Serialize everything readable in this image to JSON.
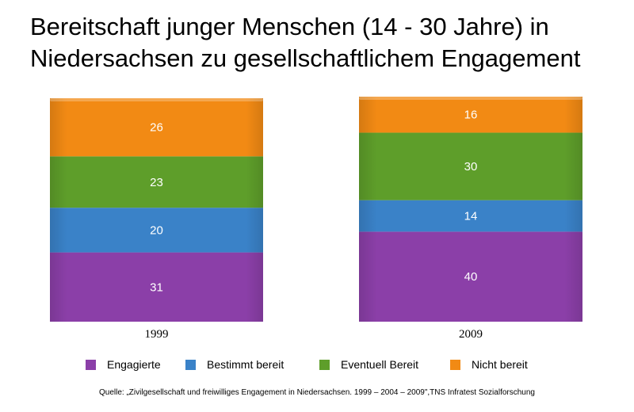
{
  "title_lines": [
    "Bereitschaft junger Menschen (14 - 30 Jahre) in",
    "Niedersachsen zu gesellschaftlichem Engagement"
  ],
  "chart_data": {
    "type": "bar",
    "stacked": true,
    "percent_stacked": true,
    "title": "Bereitschaft junger Menschen (14 - 30 Jahre) in Niedersachsen zu gesellschaftlichem Engagement",
    "categories": [
      "1999",
      "2009"
    ],
    "series": [
      {
        "name": "Engagierte",
        "color": "#8b3fa8",
        "values": [
          31,
          40
        ]
      },
      {
        "name": "Bestimmt bereit",
        "color": "#3a82c8",
        "values": [
          20,
          14
        ]
      },
      {
        "name": "Eventuell Bereit",
        "color": "#5e9e2a",
        "values": [
          23,
          30
        ]
      },
      {
        "name": "Nicht bereit",
        "color": "#f28a14",
        "values": [
          26,
          16
        ]
      }
    ],
    "legend_position": "bottom",
    "grid": false
  },
  "legend": [
    {
      "label": "Engagierte",
      "color": "#8b3fa8"
    },
    {
      "label": "Bestimmt bereit",
      "color": "#3a82c8"
    },
    {
      "label": "Eventuell Bereit",
      "color": "#5e9e2a"
    },
    {
      "label": "Nicht bereit",
      "color": "#f28a14"
    }
  ],
  "source": "Quelle: „Zivilgesellschaft und freiwilliges Engagement in Niedersachsen. 1999 – 2004 – 2009\",TNS Infratest Sozialforschung"
}
